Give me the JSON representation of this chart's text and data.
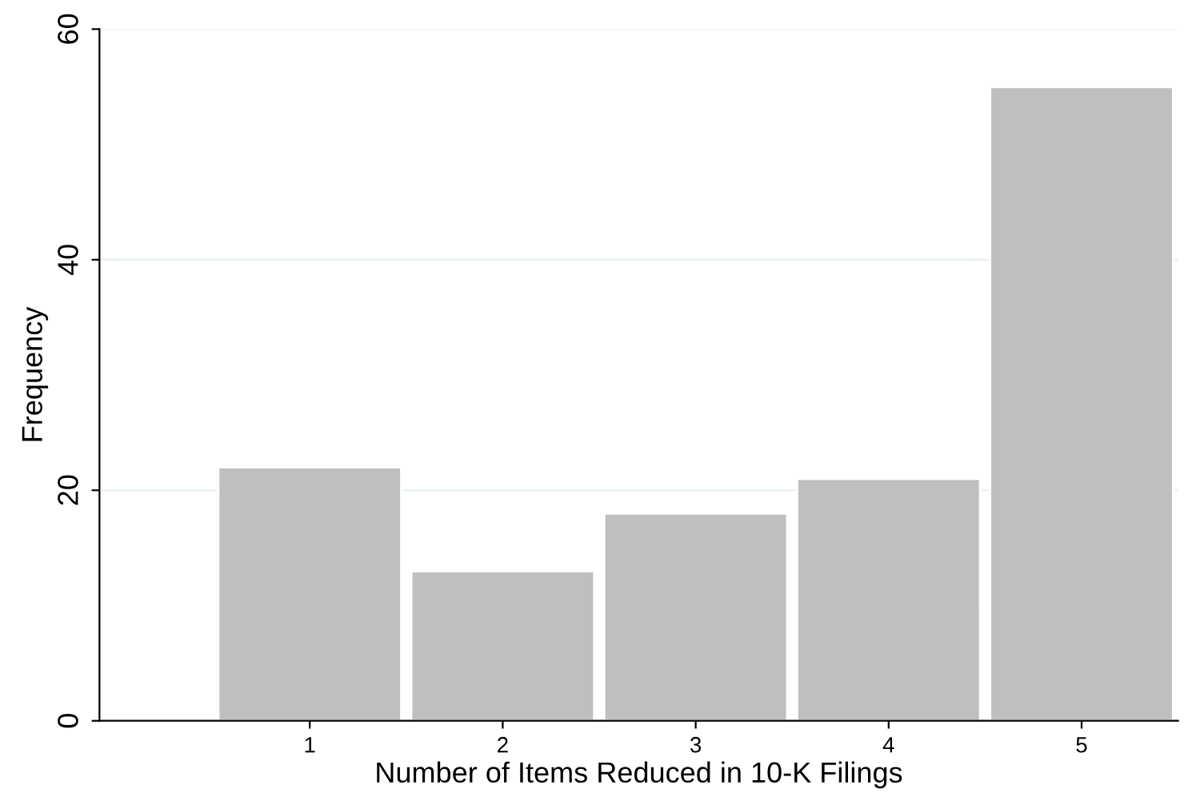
{
  "chart_data": {
    "type": "bar",
    "xlabel": "Number of Items Reduced in 10-K Filings",
    "ylabel": "Frequency",
    "x": [
      1,
      2,
      3,
      4,
      5
    ],
    "values": [
      22,
      13,
      18,
      21,
      55
    ],
    "color": "#bfbfbf",
    "xlim": [
      -0.09,
      5.5
    ],
    "xticks": [
      1,
      2,
      3,
      4,
      5
    ],
    "ylim": [
      0,
      60
    ],
    "yticks": [
      0,
      20,
      40,
      60
    ],
    "grid": "y"
  }
}
